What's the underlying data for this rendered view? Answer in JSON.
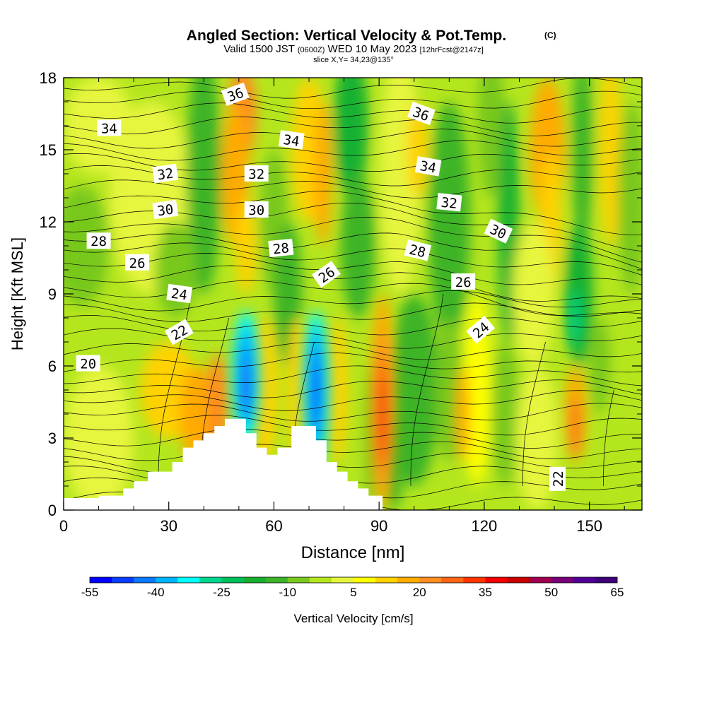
{
  "title": "Angled Section: Vertical Velocity & Pot.Temp.",
  "title_suffix": "(C)",
  "subtitle_main_a": "Valid 1500 JST",
  "subtitle_small_a": "(0600Z)",
  "subtitle_main_b": "WED 10 May 2023",
  "subtitle_small_b": "[12hrFcst@2147z]",
  "slice_label": "slice X,Y= 34,23@135°",
  "chart_data": {
    "type": "heatmap",
    "title": "Angled Section: Vertical Velocity & Pot.Temp.",
    "xlabel": "Distance [nm]",
    "ylabel": "Height [Kft MSL]",
    "xlim": [
      0,
      165
    ],
    "ylim": [
      0,
      18
    ],
    "x_ticks": [
      "0",
      "30",
      "60",
      "90",
      "120",
      "150"
    ],
    "x_tick_values": [
      0,
      30,
      60,
      90,
      120,
      150
    ],
    "y_ticks": [
      "0",
      "3",
      "6",
      "9",
      "12",
      "15",
      "18"
    ],
    "y_tick_values": [
      0,
      3,
      6,
      9,
      12,
      15,
      18
    ],
    "colorbar": {
      "label": "Vertical Velocity [cm/s]",
      "tick_labels": [
        "-55",
        "-40",
        "-25",
        "-10",
        "5",
        "20",
        "35",
        "50",
        "65"
      ],
      "tick_values": [
        -55,
        -40,
        -25,
        -10,
        5,
        20,
        35,
        50,
        65
      ],
      "range": [
        -55,
        65
      ],
      "colors": [
        "#0000ff",
        "#0a3cff",
        "#0a78ff",
        "#00b4ff",
        "#00ffff",
        "#00d68c",
        "#00c05a",
        "#16b030",
        "#3cb428",
        "#78c81e",
        "#b4e61e",
        "#e6f53c",
        "#ffff00",
        "#ffd200",
        "#ffaa00",
        "#ff8c1e",
        "#ff6414",
        "#ff3200",
        "#f00000",
        "#c80000",
        "#a00050",
        "#780078",
        "#500096",
        "#3c0078"
      ]
    },
    "features": [
      {
        "kind": "downdraft",
        "x": 52,
        "height": 5.5,
        "peak_value": -50
      },
      {
        "kind": "downdraft",
        "x": 72,
        "height": 5,
        "peak_value": -50
      },
      {
        "kind": "updraft",
        "x": 91,
        "height": 4,
        "peak_value": 45
      },
      {
        "kind": "updraft",
        "x": 146,
        "height": 4,
        "peak_value": 30
      },
      {
        "kind": "updraft",
        "x": 51,
        "height": 16.5,
        "peak_value": 25
      },
      {
        "kind": "updraft",
        "x": 138,
        "height": 15,
        "peak_value": 25
      }
    ],
    "terrain": [
      [
        10,
        0
      ],
      [
        10,
        0.6
      ],
      [
        17,
        0.6
      ],
      [
        17,
        0.9
      ],
      [
        20,
        0.9
      ],
      [
        20,
        1.2
      ],
      [
        24,
        1.2
      ],
      [
        24,
        1.6
      ],
      [
        31,
        1.6
      ],
      [
        31,
        2.0
      ],
      [
        34,
        2.0
      ],
      [
        34,
        2.6
      ],
      [
        37,
        2.6
      ],
      [
        37,
        2.9
      ],
      [
        40,
        2.9
      ],
      [
        40,
        3.2
      ],
      [
        43,
        3.2
      ],
      [
        43,
        3.5
      ],
      [
        46,
        3.5
      ],
      [
        46,
        3.8
      ],
      [
        52,
        3.8
      ],
      [
        52,
        3.2
      ],
      [
        55,
        3.2
      ],
      [
        55,
        2.6
      ],
      [
        58,
        2.6
      ],
      [
        58,
        2.3
      ],
      [
        61,
        2.3
      ],
      [
        61,
        2.6
      ],
      [
        65,
        2.6
      ],
      [
        65,
        3.5
      ],
      [
        72,
        3.5
      ],
      [
        72,
        2.9
      ],
      [
        75,
        2.9
      ],
      [
        75,
        2.0
      ],
      [
        78,
        2.0
      ],
      [
        78,
        1.6
      ],
      [
        81,
        1.6
      ],
      [
        81,
        1.2
      ],
      [
        84,
        1.2
      ],
      [
        84,
        0.9
      ],
      [
        87,
        0.9
      ],
      [
        87,
        0.6
      ],
      [
        91,
        0.6
      ],
      [
        91,
        0
      ]
    ],
    "isentropes_label": "Potential temperature (C)",
    "contour_labels": [
      {
        "text": "36",
        "x": 49,
        "y": 17.3,
        "angle": -20
      },
      {
        "text": "34",
        "x": 13,
        "y": 15.9,
        "angle": 0
      },
      {
        "text": "34",
        "x": 65,
        "y": 15.4,
        "angle": 8
      },
      {
        "text": "36",
        "x": 102,
        "y": 16.5,
        "angle": 20
      },
      {
        "text": "34",
        "x": 104,
        "y": 14.3,
        "angle": 10
      },
      {
        "text": "32",
        "x": 29,
        "y": 14.0,
        "angle": -8
      },
      {
        "text": "32",
        "x": 55,
        "y": 14.0,
        "angle": 0
      },
      {
        "text": "32",
        "x": 110,
        "y": 12.8,
        "angle": 6
      },
      {
        "text": "30",
        "x": 29,
        "y": 12.5,
        "angle": -8
      },
      {
        "text": "30",
        "x": 55,
        "y": 12.5,
        "angle": 0
      },
      {
        "text": "30",
        "x": 124,
        "y": 11.6,
        "angle": 25
      },
      {
        "text": "28",
        "x": 10,
        "y": 11.2,
        "angle": 0
      },
      {
        "text": "28",
        "x": 62,
        "y": 10.9,
        "angle": -6
      },
      {
        "text": "28",
        "x": 101,
        "y": 10.8,
        "angle": 14
      },
      {
        "text": "26",
        "x": 21,
        "y": 10.3,
        "angle": 0
      },
      {
        "text": "26",
        "x": 75,
        "y": 9.8,
        "angle": -35
      },
      {
        "text": "26",
        "x": 114,
        "y": 9.5,
        "angle": 0
      },
      {
        "text": "24",
        "x": 33,
        "y": 9.0,
        "angle": 8
      },
      {
        "text": "24",
        "x": 119,
        "y": 7.5,
        "angle": -40
      },
      {
        "text": "22",
        "x": 33,
        "y": 7.4,
        "angle": -30
      },
      {
        "text": "22",
        "x": 141,
        "y": 1.3,
        "angle": -90
      },
      {
        "text": "20",
        "x": 7,
        "y": 6.1,
        "angle": 0
      }
    ]
  }
}
